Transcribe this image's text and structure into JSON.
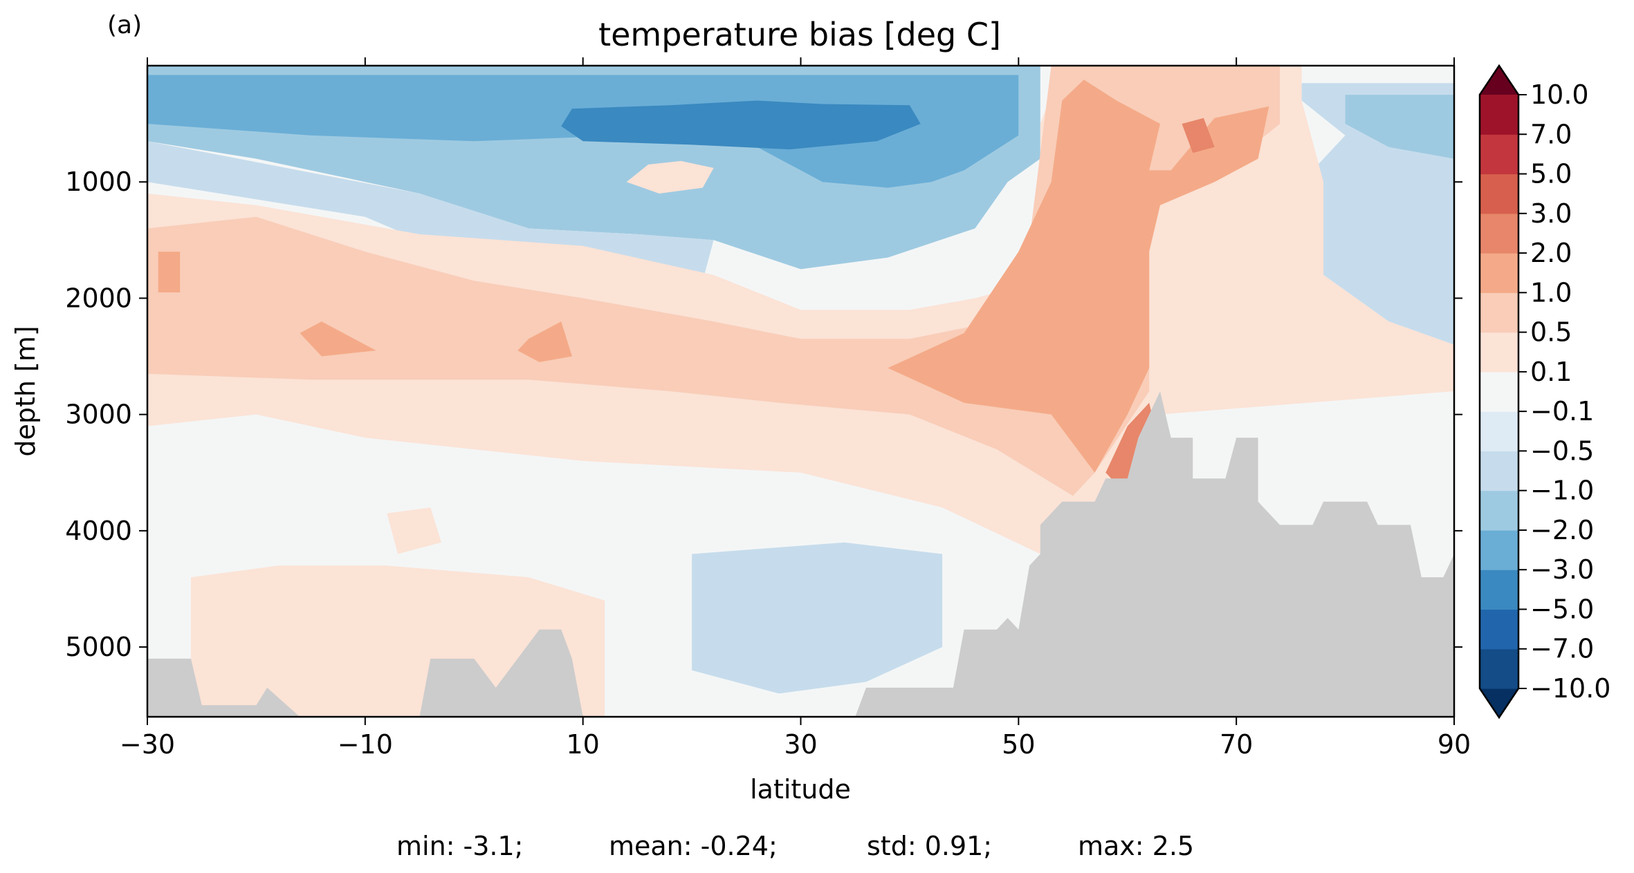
{
  "panel_label": "(a)",
  "stats": {
    "min": "min: -3.1;",
    "mean": "mean: -0.24;",
    "std": "std: 0.91;",
    "max": "max: 2.5"
  },
  "colors": {
    "land": "#cccccc",
    "frame": "#000000"
  },
  "chart_data": {
    "type": "heatmap",
    "title": "temperature bias [deg C]",
    "xlabel": "latitude",
    "ylabel": "depth [m]",
    "xlim": [
      -30,
      90
    ],
    "ylim": [
      5600,
      0
    ],
    "y_inverted": true,
    "x_ticks": [
      -30,
      -10,
      10,
      30,
      50,
      70,
      90
    ],
    "x_tick_labels": [
      "−30",
      "−10",
      "10",
      "30",
      "50",
      "70",
      "90"
    ],
    "y_ticks": [
      1000,
      2000,
      3000,
      4000,
      5000
    ],
    "y_tick_labels": [
      "1000",
      "2000",
      "3000",
      "4000",
      "5000"
    ],
    "colorbar": {
      "extend": "both",
      "levels": [
        -10.0,
        -7.0,
        -5.0,
        -3.0,
        -2.0,
        -1.0,
        -0.5,
        -0.1,
        0.1,
        0.5,
        1.0,
        2.0,
        3.0,
        5.0,
        7.0,
        10.0
      ],
      "tick_labels": [
        "−10.0",
        "−7.0",
        "−5.0",
        "−3.0",
        "−2.0",
        "−1.0",
        "−0.5",
        "−0.1",
        "0.1",
        "0.5",
        "1.0",
        "2.0",
        "3.0",
        "5.0",
        "7.0",
        "10.0"
      ],
      "colors": [
        "#053061",
        "#134c87",
        "#2166ac",
        "#3a89c0",
        "#6aaed6",
        "#9ecae1",
        "#c6dcec",
        "#deebf4",
        "#f4f6f6",
        "#fbe3d6",
        "#f9cdb8",
        "#f4aa88",
        "#e7866a",
        "#d6604d",
        "#c3363e",
        "#9e1329",
        "#67001f"
      ]
    },
    "regions": [
      {
        "level": -1.0,
        "poly": [
          [
            -30,
            0
          ],
          [
            52,
            0
          ],
          [
            52,
            800
          ],
          [
            49,
            1000
          ],
          [
            46,
            1400
          ],
          [
            38,
            1650
          ],
          [
            30,
            1750
          ],
          [
            22,
            1500
          ],
          [
            15,
            1450
          ],
          [
            5,
            1400
          ],
          [
            -5,
            1100
          ],
          [
            -20,
            800
          ],
          [
            -30,
            650
          ]
        ]
      },
      {
        "level": -2.0,
        "poly": [
          [
            -30,
            80
          ],
          [
            50,
            80
          ],
          [
            50,
            600
          ],
          [
            45,
            900
          ],
          [
            42,
            1000
          ],
          [
            38,
            1050
          ],
          [
            32,
            1000
          ],
          [
            26,
            700
          ],
          [
            14,
            600
          ],
          [
            0,
            650
          ],
          [
            -15,
            600
          ],
          [
            -30,
            500
          ]
        ]
      },
      {
        "level": -3.0,
        "poly": [
          [
            9,
            370
          ],
          [
            18,
            340
          ],
          [
            26,
            300
          ],
          [
            32,
            330
          ],
          [
            40,
            340
          ],
          [
            41,
            500
          ],
          [
            37,
            650
          ],
          [
            29,
            720
          ],
          [
            20,
            680
          ],
          [
            10,
            650
          ],
          [
            8,
            520
          ]
        ]
      },
      {
        "level": -0.5,
        "poly": [
          [
            -30,
            650
          ],
          [
            -5,
            1100
          ],
          [
            5,
            1400
          ],
          [
            15,
            1450
          ],
          [
            22,
            1500
          ],
          [
            20,
            2200
          ],
          [
            10,
            2200
          ],
          [
            0,
            1700
          ],
          [
            -10,
            1300
          ],
          [
            -30,
            1000
          ]
        ]
      },
      {
        "level": 0.1,
        "poly": [
          [
            16,
            850
          ],
          [
            19,
            820
          ],
          [
            22,
            880
          ],
          [
            21,
            1050
          ],
          [
            17,
            1100
          ],
          [
            14,
            1000
          ]
        ]
      },
      {
        "level": -0.5,
        "poly": [
          [
            76,
            150
          ],
          [
            90,
            150
          ],
          [
            90,
            2400
          ],
          [
            84,
            2200
          ],
          [
            78,
            1800
          ],
          [
            76,
            1000
          ],
          [
            80,
            600
          ],
          [
            76,
            300
          ]
        ]
      },
      {
        "level": -1.0,
        "poly": [
          [
            80,
            250
          ],
          [
            90,
            250
          ],
          [
            90,
            800
          ],
          [
            84,
            700
          ],
          [
            80,
            500
          ]
        ]
      },
      {
        "level": -0.5,
        "poly": [
          [
            20,
            4200
          ],
          [
            34,
            4100
          ],
          [
            43,
            4200
          ],
          [
            43,
            5000
          ],
          [
            36,
            5300
          ],
          [
            28,
            5400
          ],
          [
            20,
            5200
          ]
        ]
      },
      {
        "level": 0.1,
        "poly": [
          [
            -30,
            1100
          ],
          [
            -20,
            1200
          ],
          [
            -5,
            1450
          ],
          [
            10,
            1550
          ],
          [
            22,
            1800
          ],
          [
            30,
            2100
          ],
          [
            40,
            2100
          ],
          [
            46,
            2000
          ],
          [
            50,
            1900
          ],
          [
            52,
            1500
          ],
          [
            52,
            500
          ],
          [
            54,
            0
          ],
          [
            76,
            0
          ],
          [
            76,
            300
          ],
          [
            78,
            1000
          ],
          [
            78,
            1800
          ],
          [
            84,
            2200
          ],
          [
            90,
            2400
          ],
          [
            90,
            2800
          ],
          [
            63,
            3000
          ],
          [
            58,
            3800
          ],
          [
            55,
            4100
          ],
          [
            52,
            4200
          ],
          [
            43,
            3800
          ],
          [
            30,
            3500
          ],
          [
            10,
            3400
          ],
          [
            -10,
            3200
          ],
          [
            -20,
            3000
          ],
          [
            -30,
            3100
          ]
        ]
      },
      {
        "level": 0.5,
        "poly": [
          [
            -30,
            1400
          ],
          [
            -20,
            1300
          ],
          [
            -10,
            1600
          ],
          [
            0,
            1850
          ],
          [
            10,
            2000
          ],
          [
            22,
            2200
          ],
          [
            30,
            2350
          ],
          [
            40,
            2350
          ],
          [
            48,
            2200
          ],
          [
            51,
            1500
          ],
          [
            53,
            0
          ],
          [
            74,
            0
          ],
          [
            74,
            500
          ],
          [
            70,
            800
          ],
          [
            64,
            900
          ],
          [
            62,
            1300
          ],
          [
            62,
            2800
          ],
          [
            57,
            3500
          ],
          [
            55,
            3700
          ],
          [
            48,
            3300
          ],
          [
            40,
            3000
          ],
          [
            28,
            2900
          ],
          [
            18,
            2800
          ],
          [
            5,
            2700
          ],
          [
            -5,
            2700
          ],
          [
            -15,
            2700
          ],
          [
            -30,
            2650
          ]
        ]
      },
      {
        "level": 1.0,
        "poly": [
          [
            56,
            120
          ],
          [
            59,
            300
          ],
          [
            63,
            500
          ],
          [
            62,
            900
          ],
          [
            64,
            900
          ],
          [
            68,
            450
          ],
          [
            73,
            350
          ],
          [
            72,
            800
          ],
          [
            68,
            1000
          ],
          [
            63,
            1200
          ],
          [
            62,
            1600
          ],
          [
            62,
            2600
          ],
          [
            60,
            3000
          ],
          [
            57,
            3500
          ],
          [
            53,
            3000
          ],
          [
            45,
            2900
          ],
          [
            38,
            2600
          ],
          [
            45,
            2300
          ],
          [
            50,
            1600
          ],
          [
            53,
            1000
          ],
          [
            54,
            300
          ]
        ]
      },
      {
        "level": 1.0,
        "poly": [
          [
            -29,
            1600
          ],
          [
            -27,
            1600
          ],
          [
            -27,
            1950
          ],
          [
            -29,
            1950
          ]
        ]
      },
      {
        "level": 1.0,
        "poly": [
          [
            -14,
            2200
          ],
          [
            -9,
            2450
          ],
          [
            -14,
            2500
          ],
          [
            -16,
            2300
          ]
        ]
      },
      {
        "level": 1.0,
        "poly": [
          [
            5,
            2350
          ],
          [
            8,
            2200
          ],
          [
            9,
            2500
          ],
          [
            6,
            2550
          ],
          [
            4,
            2450
          ]
        ]
      },
      {
        "level": 2.0,
        "poly": [
          [
            60,
            3100
          ],
          [
            62,
            2900
          ],
          [
            63,
            3300
          ],
          [
            60,
            3700
          ],
          [
            58,
            3500
          ]
        ]
      },
      {
        "level": 2.0,
        "poly": [
          [
            65,
            500
          ],
          [
            67,
            450
          ],
          [
            68,
            700
          ],
          [
            66,
            750
          ]
        ]
      },
      {
        "level": 0.1,
        "poly": [
          [
            -26,
            4400
          ],
          [
            -18,
            4300
          ],
          [
            -8,
            4300
          ],
          [
            5,
            4400
          ],
          [
            12,
            4600
          ],
          [
            12,
            5600
          ],
          [
            -26,
            5600
          ]
        ]
      },
      {
        "level": 0.1,
        "poly": [
          [
            -8,
            3850
          ],
          [
            -4,
            3800
          ],
          [
            -3,
            4100
          ],
          [
            -7,
            4200
          ]
        ]
      }
    ],
    "topography": [
      [
        -30,
        5100
      ],
      [
        -26,
        5100
      ],
      [
        -25,
        5500
      ],
      [
        -20,
        5500
      ],
      [
        -19,
        5350
      ],
      [
        -16,
        5600
      ],
      [
        -5,
        5600
      ],
      [
        -4,
        5100
      ],
      [
        0,
        5100
      ],
      [
        2,
        5350
      ],
      [
        6,
        4850
      ],
      [
        8,
        4850
      ],
      [
        9,
        5100
      ],
      [
        10,
        5600
      ],
      [
        35,
        5600
      ],
      [
        36,
        5350
      ],
      [
        44,
        5350
      ],
      [
        45,
        4850
      ],
      [
        48,
        4850
      ],
      [
        49,
        4750
      ],
      [
        50,
        4850
      ],
      [
        51,
        4300
      ],
      [
        52,
        4200
      ],
      [
        52,
        3950
      ],
      [
        54,
        3750
      ],
      [
        57,
        3750
      ],
      [
        58,
        3550
      ],
      [
        60,
        3550
      ],
      [
        61,
        3200
      ],
      [
        63,
        2800
      ],
      [
        64,
        3200
      ],
      [
        66,
        3200
      ],
      [
        66,
        3550
      ],
      [
        69,
        3550
      ],
      [
        70,
        3200
      ],
      [
        72,
        3200
      ],
      [
        72,
        3750
      ],
      [
        74,
        3950
      ],
      [
        77,
        3950
      ],
      [
        78,
        3750
      ],
      [
        82,
        3750
      ],
      [
        83,
        3950
      ],
      [
        86,
        3950
      ],
      [
        87,
        4400
      ],
      [
        89,
        4400
      ],
      [
        90,
        4200
      ],
      [
        90,
        5600
      ]
    ]
  }
}
